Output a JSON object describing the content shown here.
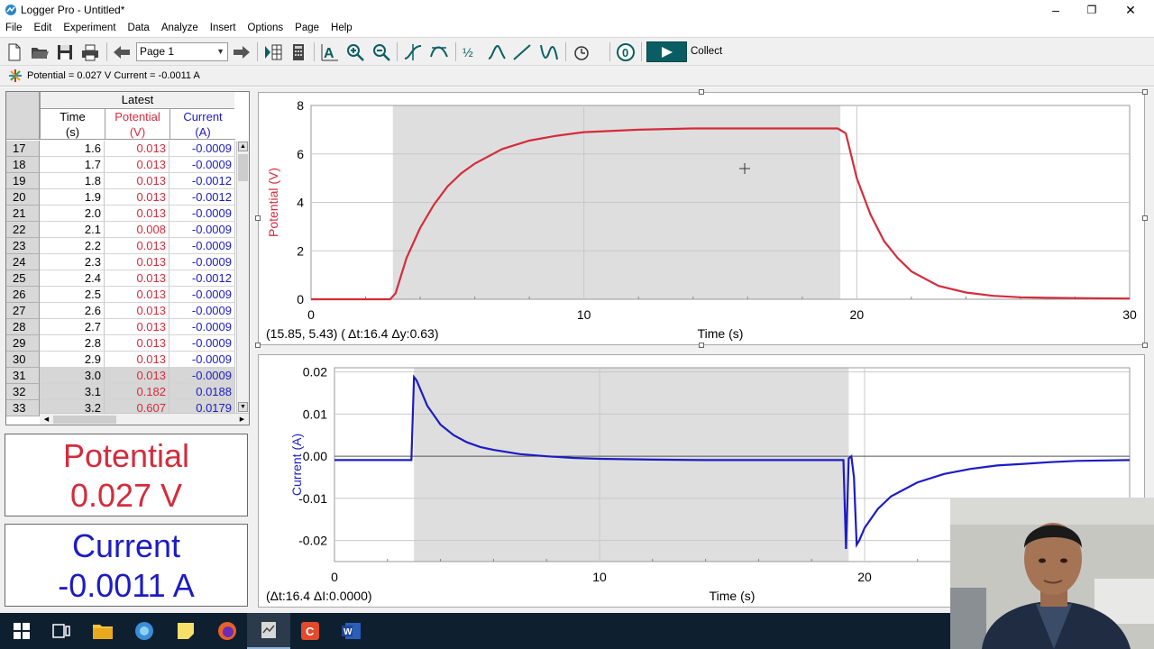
{
  "window": {
    "title": "Logger Pro - Untitled*",
    "minimize": "–",
    "restore": "❐",
    "close": "✕"
  },
  "menu": [
    "File",
    "Edit",
    "Experiment",
    "Data",
    "Analyze",
    "Insert",
    "Options",
    "Page",
    "Help"
  ],
  "toolbar": {
    "page_select": "Page 1",
    "collect_label": "Collect",
    "icons": [
      "new-file-icon",
      "open-folder-icon",
      "save-icon",
      "print-icon",
      "back-arrow-icon",
      "forward-arrow-icon",
      "table-icon",
      "calculator-icon",
      "autoscale-icon",
      "zoom-in-icon",
      "zoom-out-icon",
      "examine-icon",
      "tangent-icon",
      "integral-icon",
      "statistics-icon",
      "linear-fit-icon",
      "curve-fit-icon",
      "replay-icon",
      "zero-sensor-icon",
      "collect-play-icon"
    ]
  },
  "status": {
    "text": "Potential = 0.027 V  Current = -0.0011 A"
  },
  "table": {
    "group_header": "Latest",
    "columns": [
      {
        "name": "Time",
        "unit": "(s)",
        "color": "#000000"
      },
      {
        "name": "Potential",
        "unit": "(V)",
        "color": "#d42c3c"
      },
      {
        "name": "Current",
        "unit": "(A)",
        "color": "#1c1cc4"
      }
    ],
    "rows": [
      {
        "n": "17",
        "t": "1.6",
        "v": "0.013",
        "a": "-0.0009",
        "sel": false
      },
      {
        "n": "18",
        "t": "1.7",
        "v": "0.013",
        "a": "-0.0009",
        "sel": false
      },
      {
        "n": "19",
        "t": "1.8",
        "v": "0.013",
        "a": "-0.0012",
        "sel": false
      },
      {
        "n": "20",
        "t": "1.9",
        "v": "0.013",
        "a": "-0.0012",
        "sel": false
      },
      {
        "n": "21",
        "t": "2.0",
        "v": "0.013",
        "a": "-0.0009",
        "sel": false
      },
      {
        "n": "22",
        "t": "2.1",
        "v": "0.008",
        "a": "-0.0009",
        "sel": false
      },
      {
        "n": "23",
        "t": "2.2",
        "v": "0.013",
        "a": "-0.0009",
        "sel": false
      },
      {
        "n": "24",
        "t": "2.3",
        "v": "0.013",
        "a": "-0.0009",
        "sel": false
      },
      {
        "n": "25",
        "t": "2.4",
        "v": "0.013",
        "a": "-0.0012",
        "sel": false
      },
      {
        "n": "26",
        "t": "2.5",
        "v": "0.013",
        "a": "-0.0009",
        "sel": false
      },
      {
        "n": "27",
        "t": "2.6",
        "v": "0.013",
        "a": "-0.0009",
        "sel": false
      },
      {
        "n": "28",
        "t": "2.7",
        "v": "0.013",
        "a": "-0.0009",
        "sel": false
      },
      {
        "n": "29",
        "t": "2.8",
        "v": "0.013",
        "a": "-0.0009",
        "sel": false
      },
      {
        "n": "30",
        "t": "2.9",
        "v": "0.013",
        "a": "-0.0009",
        "sel": false
      },
      {
        "n": "31",
        "t": "3.0",
        "v": "0.013",
        "a": "-0.0009",
        "sel": true
      },
      {
        "n": "32",
        "t": "3.1",
        "v": "0.182",
        "a": "0.0188",
        "sel": true
      },
      {
        "n": "33",
        "t": "3.2",
        "v": "0.607",
        "a": "0.0179",
        "sel": true
      }
    ]
  },
  "meters": {
    "potential": {
      "label": "Potential",
      "value": "0.027 V",
      "color": "#d42c3c"
    },
    "current": {
      "label": "Current",
      "value": "-0.0011 A",
      "color": "#1c1cc4"
    }
  },
  "chart_data": [
    {
      "type": "line",
      "name": "potential-graph",
      "ylabel": "Potential (V)",
      "xlabel": "Time (s)",
      "xlim": [
        0,
        30
      ],
      "ylim": [
        0,
        8
      ],
      "xticks": [
        "0",
        "10",
        "20",
        "30"
      ],
      "yticks": [
        "0",
        "2",
        "4",
        "6",
        "8"
      ],
      "color": "#d42c3c",
      "selection_x": [
        3.0,
        19.4
      ],
      "cursor_readout": "(15.85, 5.43) ( Δt:16.4  Δy:0.63)",
      "x": [
        0,
        2.9,
        3.1,
        3.5,
        4.0,
        4.5,
        5.0,
        5.5,
        6.0,
        7.0,
        8.0,
        9.0,
        10.0,
        12.0,
        14.0,
        16.0,
        18.0,
        19.3,
        19.6,
        20.0,
        20.5,
        21.0,
        21.5,
        22.0,
        23.0,
        24.0,
        25.0,
        26.0,
        27.0,
        28.0,
        30.0
      ],
      "y": [
        0.0,
        0.0,
        0.25,
        1.7,
        2.95,
        3.9,
        4.65,
        5.2,
        5.6,
        6.2,
        6.55,
        6.75,
        6.9,
        7.0,
        7.05,
        7.05,
        7.05,
        7.05,
        6.85,
        5.0,
        3.5,
        2.4,
        1.7,
        1.15,
        0.55,
        0.28,
        0.14,
        0.08,
        0.06,
        0.05,
        0.03
      ]
    },
    {
      "type": "line",
      "name": "current-graph",
      "ylabel": "Current (A)",
      "xlabel": "Time (s)",
      "xlim": [
        0,
        30
      ],
      "ylim": [
        -0.025,
        0.021
      ],
      "xticks": [
        "0",
        "10",
        "20"
      ],
      "yticks": [
        "0.02",
        "0.01",
        "0.00",
        "-0.01",
        "-0.02"
      ],
      "color": "#1c1cc4",
      "selection_x": [
        3.0,
        19.4
      ],
      "cursor_readout": "(Δt:16.4  ΔI:0.0000)",
      "x": [
        0,
        2.9,
        3.0,
        3.1,
        3.5,
        4.0,
        4.5,
        5.0,
        5.5,
        6.0,
        7.0,
        8.0,
        9.0,
        10.0,
        12.0,
        14.0,
        16.0,
        18.0,
        19.2,
        19.3,
        19.4,
        19.5,
        19.6,
        19.7,
        19.8,
        20.0,
        20.5,
        21.0,
        22.0,
        23.0,
        24.0,
        25.0,
        26.0,
        27.0,
        28.0,
        30.0
      ],
      "y": [
        -0.0009,
        -0.0009,
        0.0188,
        0.018,
        0.012,
        0.0075,
        0.005,
        0.0033,
        0.0022,
        0.0015,
        0.0005,
        0.0,
        -0.0004,
        -0.0006,
        -0.0008,
        -0.0009,
        -0.0009,
        -0.0009,
        -0.0009,
        -0.022,
        -0.0005,
        0.0,
        -0.005,
        -0.021,
        -0.02,
        -0.017,
        -0.0125,
        -0.0095,
        -0.0062,
        -0.0042,
        -0.003,
        -0.0022,
        -0.0018,
        -0.0014,
        -0.0011,
        -0.0009
      ]
    }
  ]
}
